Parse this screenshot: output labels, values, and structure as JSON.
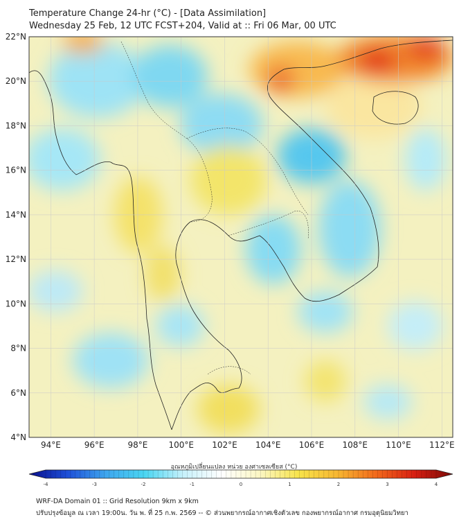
{
  "header": {
    "title": "Temperature Change 24-hr (°C) - [Data Assimilation]",
    "subtitle": "Wednesday 25 Feb, 12 UTC FCST+204, Valid at :: Fri 06 Mar, 00 UTC"
  },
  "map": {
    "lat_labels": [
      "22°N",
      "20°N",
      "18°N",
      "16°N",
      "14°N",
      "12°N",
      "10°N",
      "8°N",
      "6°N",
      "4°N"
    ],
    "lon_labels": [
      "94°E",
      "96°E",
      "98°E",
      "100°E",
      "102°E",
      "104°E",
      "106°E",
      "108°E",
      "110°E",
      "112°E"
    ],
    "lat_range": [
      4,
      22
    ],
    "lon_range": [
      93,
      112.5
    ],
    "grid": true
  },
  "colorbar": {
    "label": "อุณหภูมิเปลี่ยนแปลง หน่วย องศาเซลเซียส (°C)",
    "ticks": [
      "-4",
      "-3",
      "-2",
      "-1",
      "0",
      "1",
      "2",
      "3",
      "4"
    ],
    "range": [
      -4,
      4
    ],
    "colors": [
      "#0a0f8c",
      "#1d4fd8",
      "#3ea6ee",
      "#49d6f2",
      "#c7f1fb",
      "#ffffff",
      "#fbf6c2",
      "#f7e34a",
      "#f7b731",
      "#f26a1b",
      "#d81f12",
      "#7a0a06"
    ]
  },
  "footer": {
    "line1": "WRF-DA Domain 01 :: Grid Resolution 9km x 9km",
    "line2": "ปรับปรุงข้อมูล ณ เวลา 19:00น. วัน พ. ที่ 25 ก.พ. 2569 -- © ส่วนพยากรณ์อากาศเชิงตัวเลข กองพยากรณ์อากาศ กรมอุตุนิยมวิทยา"
  }
}
